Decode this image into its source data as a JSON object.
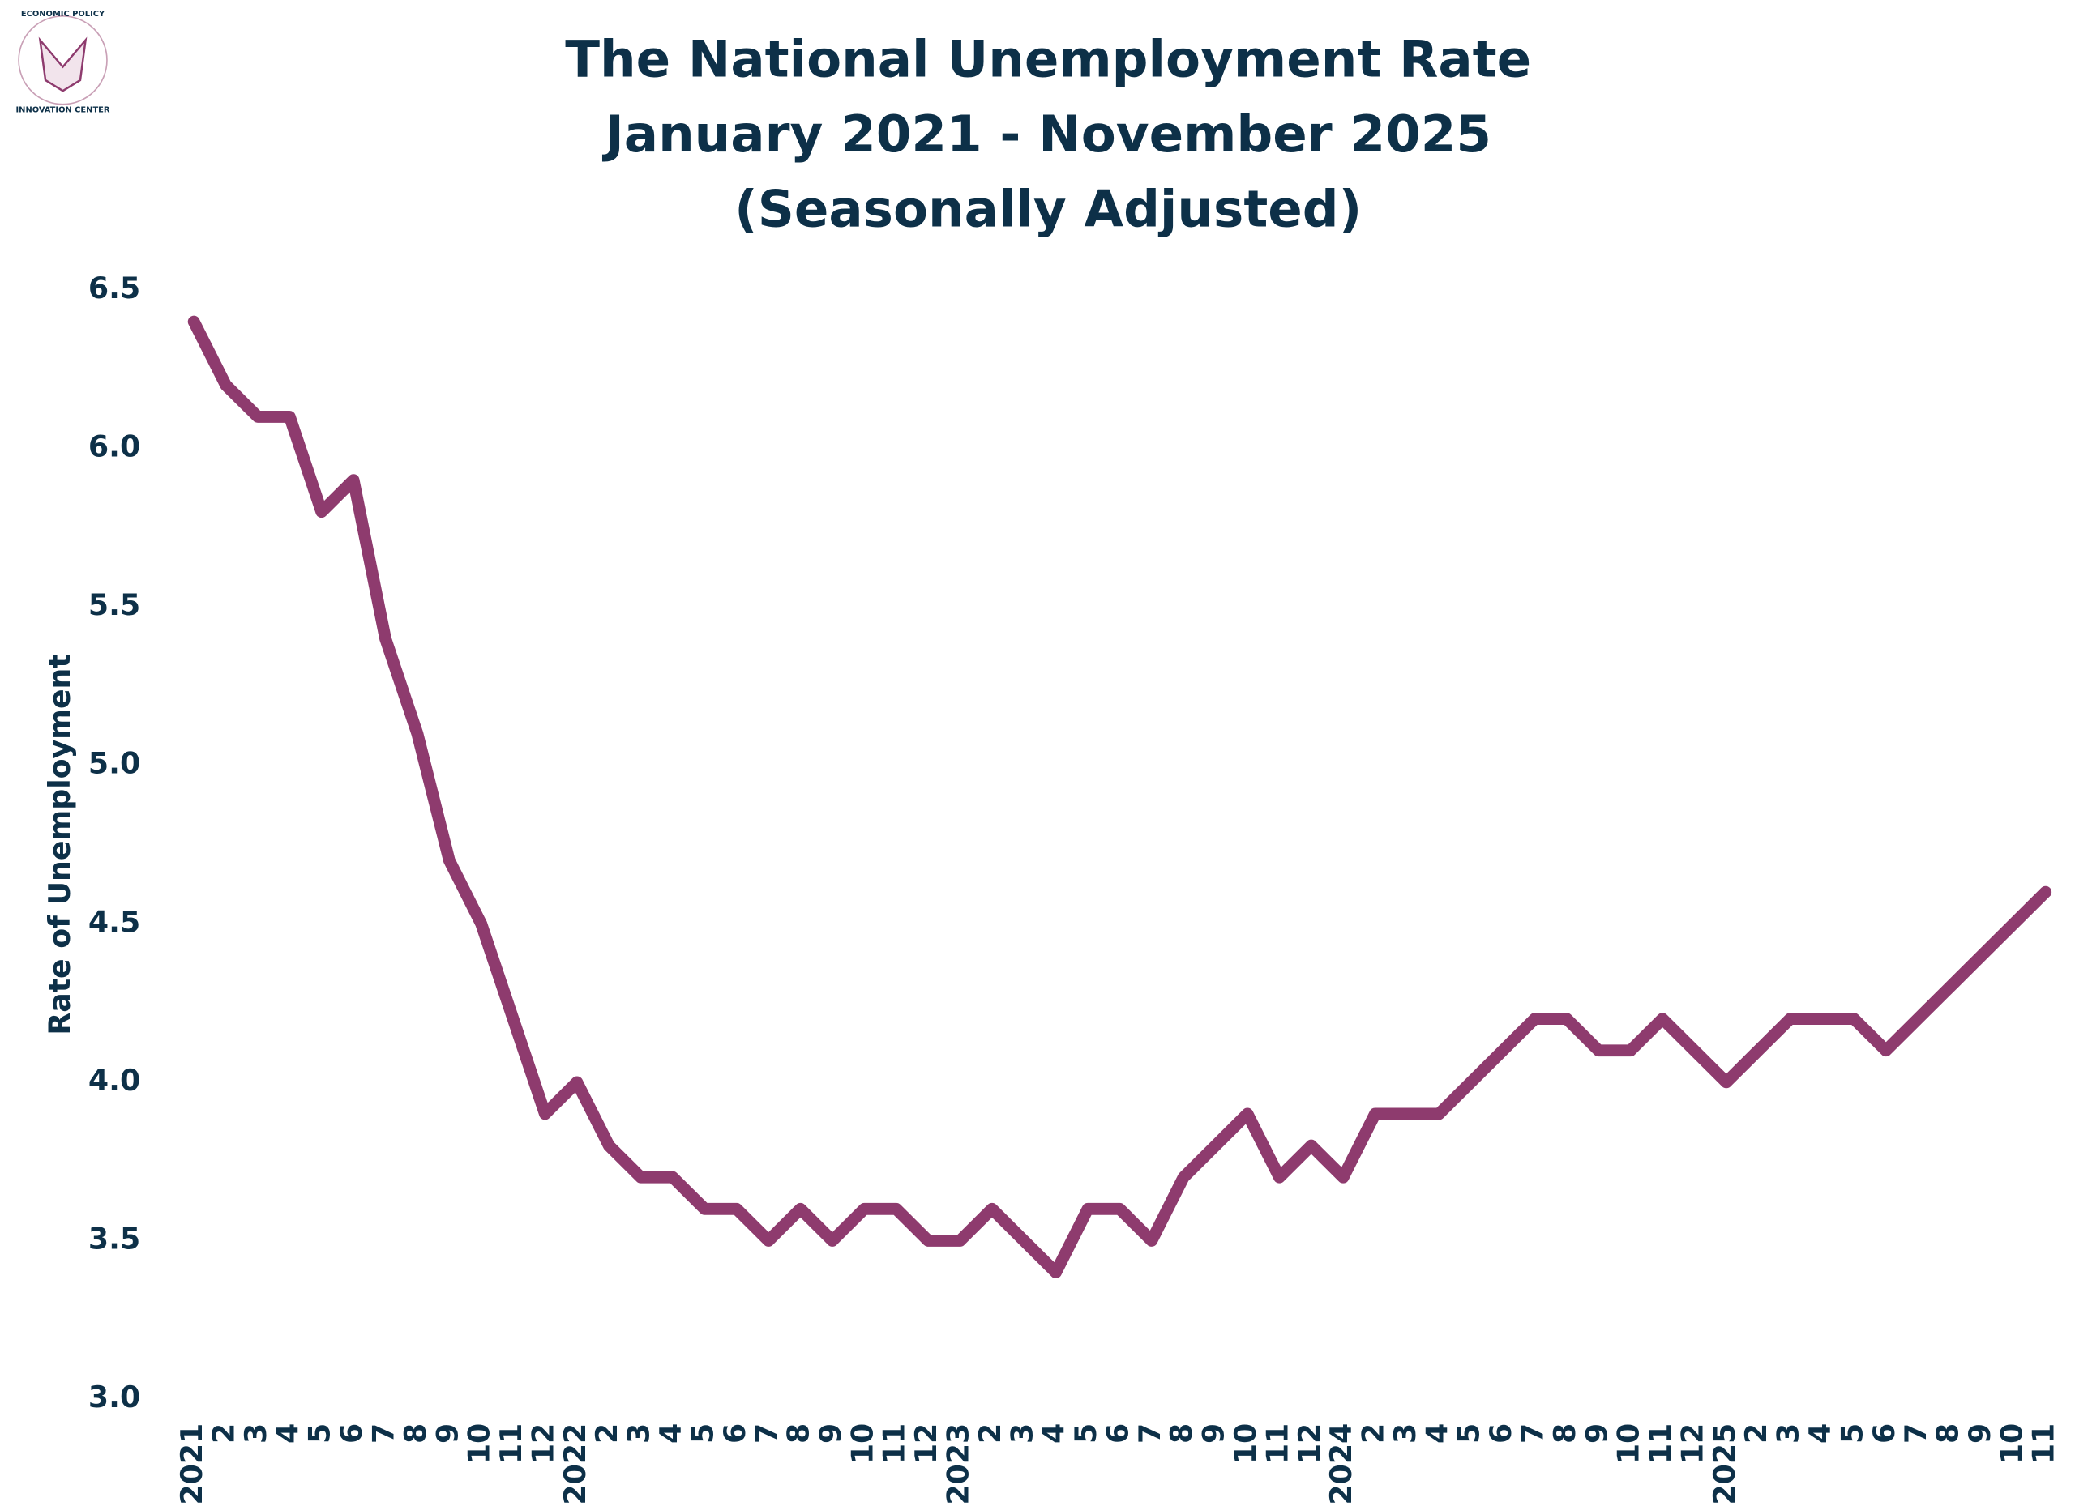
{
  "logo": {
    "top": "ECONOMIC POLICY",
    "bottom": "INNOVATION CENTER"
  },
  "chart_data": {
    "type": "line",
    "title": [
      "The National Unemployment Rate",
      "January 2021 - November 2025",
      "(Seasonally Adjusted)"
    ],
    "y_label": "Rate of Unemployment",
    "categories": [
      "2021",
      "2",
      "3",
      "4",
      "5",
      "6",
      "7",
      "8",
      "9",
      "10",
      "11",
      "12",
      "2022",
      "2",
      "3",
      "4",
      "5",
      "6",
      "7",
      "8",
      "9",
      "10",
      "11",
      "12",
      "2023",
      "2",
      "3",
      "4",
      "5",
      "6",
      "7",
      "8",
      "9",
      "10",
      "11",
      "12",
      "2024",
      "2",
      "3",
      "4",
      "5",
      "6",
      "7",
      "8",
      "9",
      "10",
      "11",
      "12",
      "2025",
      "2",
      "3",
      "4",
      "5",
      "6",
      "7",
      "8",
      "9",
      "10",
      "11"
    ],
    "series": [
      {
        "color": "#8e3b6e",
        "values": [
          6.4,
          6.2,
          6.1,
          6.1,
          5.8,
          5.9,
          5.4,
          5.1,
          4.7,
          4.5,
          4.2,
          3.9,
          4.0,
          3.8,
          3.7,
          3.7,
          3.6,
          3.6,
          3.5,
          3.6,
          3.5,
          3.6,
          3.6,
          3.5,
          3.5,
          3.6,
          3.5,
          3.4,
          3.6,
          3.6,
          3.5,
          3.7,
          3.8,
          3.9,
          3.7,
          3.8,
          3.7,
          3.9,
          3.9,
          3.9,
          4.0,
          4.1,
          4.2,
          4.2,
          4.1,
          4.1,
          4.2,
          4.1,
          4.0,
          4.1,
          4.2,
          4.2,
          4.2,
          4.1,
          4.2,
          4.3,
          4.4,
          4.5,
          4.6
        ]
      }
    ],
    "ylim": [
      3.0,
      6.5
    ],
    "yticks": [
      {
        "value": 3,
        "label": "3.0"
      },
      {
        "value": 3.5,
        "label": "3.5"
      },
      {
        "value": 4,
        "label": "4.0"
      },
      {
        "value": 4.5,
        "label": "4.5"
      },
      {
        "value": 5,
        "label": "5.0"
      },
      {
        "value": 5.5,
        "label": "5.5"
      },
      {
        "value": 6,
        "label": "6.0"
      },
      {
        "value": 6.5,
        "label": "6.5"
      }
    ],
    "grid": false
  }
}
